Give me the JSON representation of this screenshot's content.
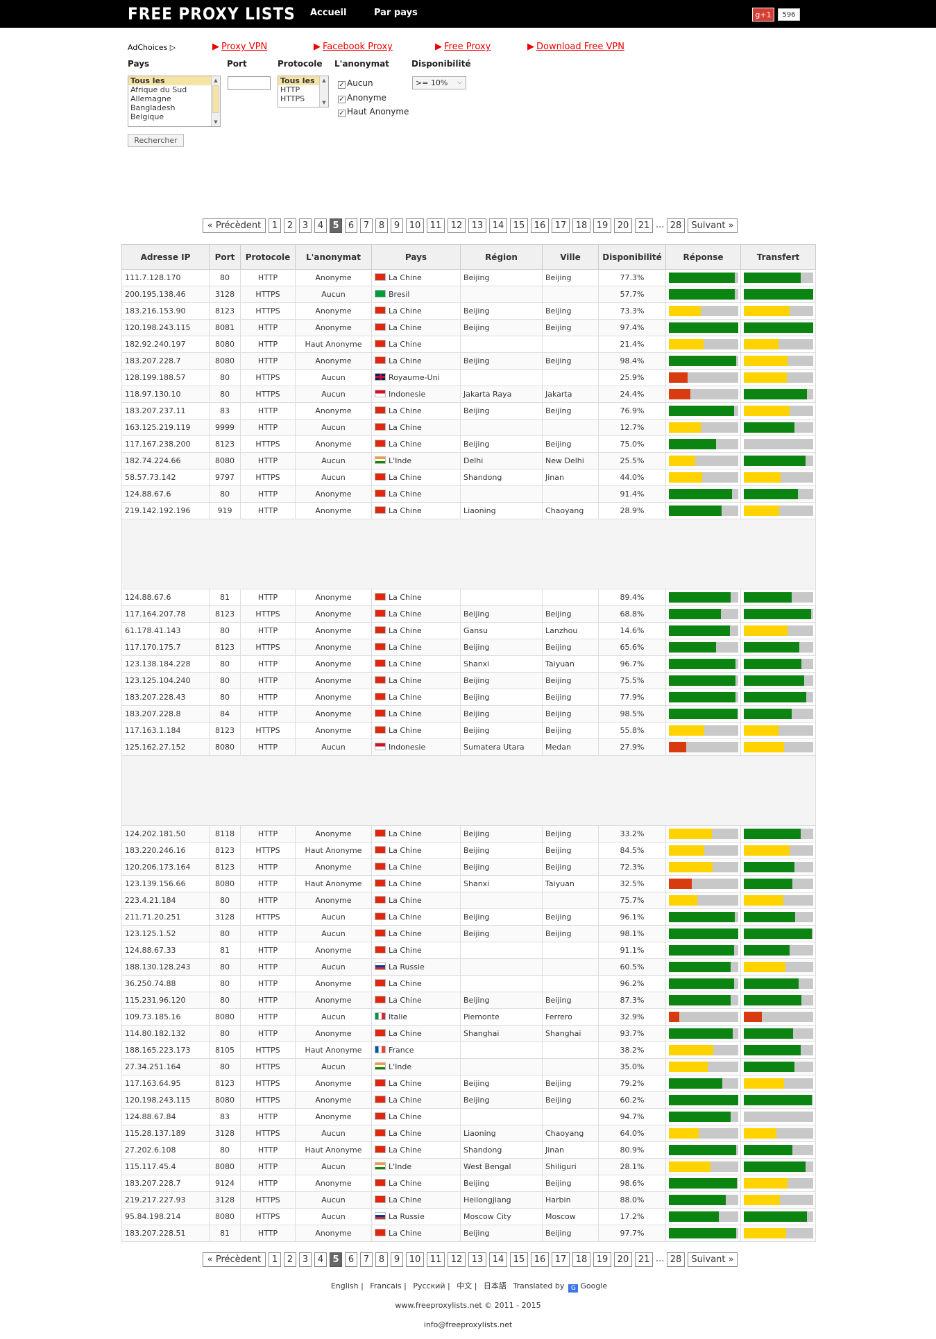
{
  "header": {
    "logo": "FREE PROXY LISTS",
    "nav": [
      "Accueil",
      "Par pays"
    ],
    "gplus_label": "g+1",
    "gplus_count": "596"
  },
  "ads": {
    "adchoices": "AdChoices ▷",
    "links": [
      "Proxy VPN",
      "Facebook Proxy",
      "Free Proxy",
      "Download Free VPN"
    ]
  },
  "filters": {
    "pays_label": "Pays",
    "port_label": "Port",
    "protocole_label": "Protocole",
    "anonymat_label": "L'anonymat",
    "dispo_label": "Disponibilité",
    "pays_options": [
      "Tous les",
      "Afrique du Sud",
      "Allemagne",
      "Bangladesh",
      "Belgique"
    ],
    "protocole_options": [
      "Tous les",
      "HTTP",
      "HTTPS"
    ],
    "anonymat_options": [
      "Aucun",
      "Anonyme",
      "Haut Anonyme"
    ],
    "dispo_value": ">= 10%",
    "search_button": "Rechercher"
  },
  "pager": {
    "prev": "« Précèdent",
    "pages": [
      "1",
      "2",
      "3",
      "4",
      "5",
      "6",
      "7",
      "8",
      "9",
      "10",
      "11",
      "12",
      "13",
      "14",
      "15",
      "16",
      "17",
      "18",
      "19",
      "20",
      "21"
    ],
    "current": "5",
    "dots": "...",
    "last": "28",
    "next": "Suivant »"
  },
  "table": {
    "headers": [
      "Adresse IP",
      "Port",
      "Protocole",
      "L'anonymat",
      "Pays",
      "Région",
      "Ville",
      "Disponibilité",
      "Réponse",
      "Transfert"
    ],
    "groups": [
      [
        [
          "111.7.128.170",
          "80",
          "HTTP",
          "Anonyme",
          "cn",
          "La Chine",
          "Beijing",
          "Beijing",
          "77.3%",
          [
            95,
            "g"
          ],
          [
            82,
            "g"
          ]
        ],
        [
          "200.195.138.46",
          "3128",
          "HTTPS",
          "Aucun",
          "br",
          "Bresil",
          "",
          "",
          "57.7%",
          [
            95,
            "g"
          ],
          [
            100,
            "g"
          ]
        ],
        [
          "183.216.153.90",
          "8123",
          "HTTPS",
          "Anonyme",
          "cn",
          "La Chine",
          "Beijing",
          "Beijing",
          "73.3%",
          [
            46,
            "y"
          ],
          [
            66,
            "y"
          ]
        ],
        [
          "120.198.243.115",
          "8081",
          "HTTP",
          "Anonyme",
          "cn",
          "La Chine",
          "Beijing",
          "Beijing",
          "97.4%",
          [
            100,
            "g"
          ],
          [
            100,
            "g"
          ]
        ],
        [
          "182.92.240.197",
          "8080",
          "HTTP",
          "Haut Anonyme",
          "cn",
          "La Chine",
          "",
          "",
          "21.4%",
          [
            50,
            "y"
          ],
          [
            50,
            "y"
          ]
        ],
        [
          "183.207.228.7",
          "8080",
          "HTTP",
          "Anonyme",
          "cn",
          "La Chine",
          "Beijing",
          "Beijing",
          "98.4%",
          [
            97,
            "g"
          ],
          [
            63,
            "y"
          ]
        ],
        [
          "128.199.188.57",
          "80",
          "HTTPS",
          "Aucun",
          "gb",
          "Royaume-Uni",
          "",
          "",
          "25.9%",
          [
            27,
            "r"
          ],
          [
            62,
            "y"
          ]
        ],
        [
          "118.97.130.10",
          "80",
          "HTTPS",
          "Aucun",
          "id",
          "Indonesie",
          "Jakarta Raya",
          "Jakarta",
          "24.4%",
          [
            31,
            "r"
          ],
          [
            91,
            "g"
          ]
        ],
        [
          "183.207.237.11",
          "83",
          "HTTP",
          "Anonyme",
          "cn",
          "La Chine",
          "Beijing",
          "Beijing",
          "76.9%",
          [
            94,
            "g"
          ],
          [
            66,
            "y"
          ]
        ],
        [
          "163.125.219.119",
          "9999",
          "HTTP",
          "Aucun",
          "cn",
          "La Chine",
          "",
          "",
          "12.7%",
          [
            46,
            "y"
          ],
          [
            73,
            "g"
          ]
        ],
        [
          "117.167.238.200",
          "8123",
          "HTTPS",
          "Anonyme",
          "cn",
          "La Chine",
          "Beijing",
          "Beijing",
          "75.0%",
          [
            68,
            "g"
          ],
          [
            0,
            "g"
          ]
        ],
        [
          "182.74.224.66",
          "8080",
          "HTTP",
          "Aucun",
          "in",
          "L'Inde",
          "Delhi",
          "New Delhi",
          "25.5%",
          [
            38,
            "y"
          ],
          [
            89,
            "g"
          ]
        ],
        [
          "58.57.73.142",
          "9797",
          "HTTPS",
          "Aucun",
          "cn",
          "La Chine",
          "Shandong",
          "Jinan",
          "44.0%",
          [
            48,
            "y"
          ],
          [
            53,
            "y"
          ]
        ],
        [
          "124.88.67.6",
          "80",
          "HTTP",
          "Anonyme",
          "cn",
          "La Chine",
          "",
          "",
          "91.4%",
          [
            91,
            "g"
          ],
          [
            78,
            "g"
          ]
        ],
        [
          "219.142.192.196",
          "919",
          "HTTP",
          "Anonyme",
          "cn",
          "La Chine",
          "Liaoning",
          "Chaoyang",
          "28.9%",
          [
            76,
            "g"
          ],
          [
            51,
            "y"
          ]
        ]
      ],
      [
        [
          "124.88.67.6",
          "81",
          "HTTP",
          "Anonyme",
          "cn",
          "La Chine",
          "",
          "",
          "89.4%",
          [
            89,
            "g"
          ],
          [
            69,
            "g"
          ]
        ],
        [
          "117.164.207.78",
          "8123",
          "HTTPS",
          "Anonyme",
          "cn",
          "La Chine",
          "Beijing",
          "Beijing",
          "68.8%",
          [
            75,
            "g"
          ],
          [
            97,
            "g"
          ]
        ],
        [
          "61.178.41.143",
          "80",
          "HTTP",
          "Anonyme",
          "cn",
          "La Chine",
          "Gansu",
          "Lanzhou",
          "14.6%",
          [
            88,
            "g"
          ],
          [
            63,
            "y"
          ]
        ],
        [
          "117.170.175.7",
          "8123",
          "HTTPS",
          "Anonyme",
          "cn",
          "La Chine",
          "Beijing",
          "Beijing",
          "65.6%",
          [
            68,
            "g"
          ],
          [
            80,
            "g"
          ]
        ],
        [
          "123.138.184.228",
          "80",
          "HTTP",
          "Anonyme",
          "cn",
          "La Chine",
          "Shanxi",
          "Taiyuan",
          "96.7%",
          [
            96,
            "g"
          ],
          [
            83,
            "g"
          ]
        ],
        [
          "123.125.104.240",
          "80",
          "HTTP",
          "Anonyme",
          "cn",
          "La Chine",
          "Beijing",
          "Beijing",
          "75.5%",
          [
            96,
            "g"
          ],
          [
            87,
            "g"
          ]
        ],
        [
          "183.207.228.43",
          "80",
          "HTTP",
          "Anonyme",
          "cn",
          "La Chine",
          "Beijing",
          "Beijing",
          "77.9%",
          [
            96,
            "g"
          ],
          [
            90,
            "g"
          ]
        ],
        [
          "183.207.228.8",
          "84",
          "HTTP",
          "Anonyme",
          "cn",
          "La Chine",
          "Beijing",
          "Beijing",
          "98.5%",
          [
            99,
            "g"
          ],
          [
            69,
            "g"
          ]
        ],
        [
          "117.163.1.184",
          "8123",
          "HTTPS",
          "Anonyme",
          "cn",
          "La Chine",
          "Beijing",
          "Beijing",
          "55.8%",
          [
            51,
            "y"
          ],
          [
            50,
            "y"
          ]
        ],
        [
          "125.162.27.152",
          "8080",
          "HTTP",
          "Aucun",
          "id",
          "Indonesie",
          "Sumatera Utara",
          "Medan",
          "27.9%",
          [
            25,
            "r"
          ],
          [
            58,
            "y"
          ]
        ]
      ],
      [
        [
          "124.202.181.50",
          "8118",
          "HTTP",
          "Anonyme",
          "cn",
          "La Chine",
          "Beijing",
          "Beijing",
          "33.2%",
          [
            62,
            "y"
          ],
          [
            82,
            "g"
          ]
        ],
        [
          "183.220.246.16",
          "8123",
          "HTTPS",
          "Haut Anonyme",
          "cn",
          "La Chine",
          "Beijing",
          "Beijing",
          "84.5%",
          [
            51,
            "y"
          ],
          [
            66,
            "y"
          ]
        ],
        [
          "120.206.173.164",
          "8123",
          "HTTP",
          "Anonyme",
          "cn",
          "La Chine",
          "Beijing",
          "Beijing",
          "72.3%",
          [
            63,
            "y"
          ],
          [
            73,
            "g"
          ]
        ],
        [
          "123.139.156.66",
          "8080",
          "HTTP",
          "Haut Anonyme",
          "cn",
          "La Chine",
          "Shanxi",
          "Taiyuan",
          "32.5%",
          [
            33,
            "r"
          ],
          [
            70,
            "g"
          ]
        ],
        [
          "223.4.21.184",
          "80",
          "HTTP",
          "Anonyme",
          "cn",
          "La Chine",
          "",
          "",
          "75.7%",
          [
            41,
            "y"
          ],
          [
            57,
            "y"
          ]
        ],
        [
          "211.71.20.251",
          "3128",
          "HTTPS",
          "Aucun",
          "cn",
          "La Chine",
          "Beijing",
          "Beijing",
          "96.1%",
          [
            95,
            "g"
          ],
          [
            74,
            "g"
          ]
        ],
        [
          "123.125.1.52",
          "80",
          "HTTP",
          "Aucun",
          "cn",
          "La Chine",
          "Beijing",
          "Beijing",
          "98.1%",
          [
            100,
            "g"
          ],
          [
            98,
            "g"
          ]
        ],
        [
          "124.88.67.33",
          "81",
          "HTTP",
          "Anonyme",
          "cn",
          "La Chine",
          "",
          "",
          "91.1%",
          [
            94,
            "g"
          ],
          [
            66,
            "g"
          ]
        ],
        [
          "188.130.128.243",
          "80",
          "HTTP",
          "Aucun",
          "ru",
          "La Russie",
          "",
          "",
          "60.5%",
          [
            89,
            "g"
          ],
          [
            60,
            "y"
          ]
        ],
        [
          "36.250.74.88",
          "80",
          "HTTP",
          "Anonyme",
          "cn",
          "La Chine",
          "",
          "",
          "96.2%",
          [
            94,
            "g"
          ],
          [
            79,
            "g"
          ]
        ],
        [
          "115.231.96.120",
          "80",
          "HTTP",
          "Anonyme",
          "cn",
          "La Chine",
          "Beijing",
          "Beijing",
          "87.3%",
          [
            89,
            "g"
          ],
          [
            83,
            "g"
          ]
        ],
        [
          "109.73.185.16",
          "8080",
          "HTTP",
          "Aucun",
          "it",
          "Italie",
          "Piemonte",
          "Ferrero",
          "32.9%",
          [
            15,
            "r"
          ],
          [
            26,
            "r"
          ]
        ],
        [
          "114.80.182.132",
          "80",
          "HTTP",
          "Anonyme",
          "cn",
          "La Chine",
          "Shanghai",
          "Shanghai",
          "93.7%",
          [
            92,
            "g"
          ],
          [
            71,
            "g"
          ]
        ],
        [
          "188.165.223.173",
          "8105",
          "HTTPS",
          "Haut Anonyme",
          "fr",
          "France",
          "",
          "",
          "38.2%",
          [
            64,
            "y"
          ],
          [
            82,
            "g"
          ]
        ],
        [
          "27.34.251.164",
          "80",
          "HTTPS",
          "Aucun",
          "in",
          "L'Inde",
          "",
          "",
          "35.0%",
          [
            56,
            "y"
          ],
          [
            73,
            "g"
          ]
        ],
        [
          "117.163.64.95",
          "8123",
          "HTTPS",
          "Anonyme",
          "cn",
          "La Chine",
          "Beijing",
          "Beijing",
          "79.2%",
          [
            77,
            "g"
          ],
          [
            58,
            "y"
          ]
        ],
        [
          "120.198.243.115",
          "8080",
          "HTTPS",
          "Anonyme",
          "cn",
          "La Chine",
          "Beijing",
          "Beijing",
          "60.2%",
          [
            100,
            "g"
          ],
          [
            98,
            "g"
          ]
        ],
        [
          "124.88.67.84",
          "83",
          "HTTP",
          "Anonyme",
          "cn",
          "La Chine",
          "",
          "",
          "94.7%",
          [
            89,
            "g"
          ],
          [
            0,
            "g"
          ]
        ],
        [
          "115.28.137.189",
          "3128",
          "HTTPS",
          "Aucun",
          "cn",
          "La Chine",
          "Liaoning",
          "Chaoyang",
          "64.0%",
          [
            43,
            "y"
          ],
          [
            47,
            "y"
          ]
        ],
        [
          "27.202.6.108",
          "80",
          "HTTP",
          "Haut Anonyme",
          "cn",
          "La Chine",
          "Shandong",
          "Jinan",
          "80.9%",
          [
            97,
            "g"
          ],
          [
            70,
            "g"
          ]
        ],
        [
          "115.117.45.4",
          "8080",
          "HTTP",
          "Aucun",
          "in",
          "L'Inde",
          "West Bengal",
          "Shiliguri",
          "28.1%",
          [
            60,
            "y"
          ],
          [
            89,
            "g"
          ]
        ],
        [
          "183.207.228.7",
          "9124",
          "HTTP",
          "Anonyme",
          "cn",
          "La Chine",
          "Beijing",
          "Beijing",
          "98.6%",
          [
            98,
            "g"
          ],
          [
            63,
            "y"
          ]
        ],
        [
          "219.217.227.93",
          "3128",
          "HTTPS",
          "Aucun",
          "cn",
          "La Chine",
          "Heilongjiang",
          "Harbin",
          "88.0%",
          [
            82,
            "g"
          ],
          [
            52,
            "y"
          ]
        ],
        [
          "95.84.198.214",
          "8080",
          "HTTPS",
          "Aucun",
          "ru",
          "La Russie",
          "Moscow City",
          "Moscow",
          "17.2%",
          [
            72,
            "g"
          ],
          [
            91,
            "g"
          ]
        ],
        [
          "183.207.228.51",
          "81",
          "HTTP",
          "Anonyme",
          "cn",
          "La Chine",
          "Beijing",
          "Beijing",
          "97.7%",
          [
            97,
            "g"
          ],
          [
            61,
            "y"
          ]
        ]
      ]
    ]
  },
  "footer": {
    "langs": [
      "English |",
      "Francais |",
      "Русский |",
      "中文 |",
      "日本語",
      "Translated by",
      "Google"
    ],
    "copyright": "www.freeproxylists.net © 2011 - 2015",
    "email": "info@freeproxylists.net"
  },
  "colors": {
    "green": "#0c8412",
    "yellow": "#fed300",
    "red": "#d83b10",
    "topbar": "#000000"
  }
}
